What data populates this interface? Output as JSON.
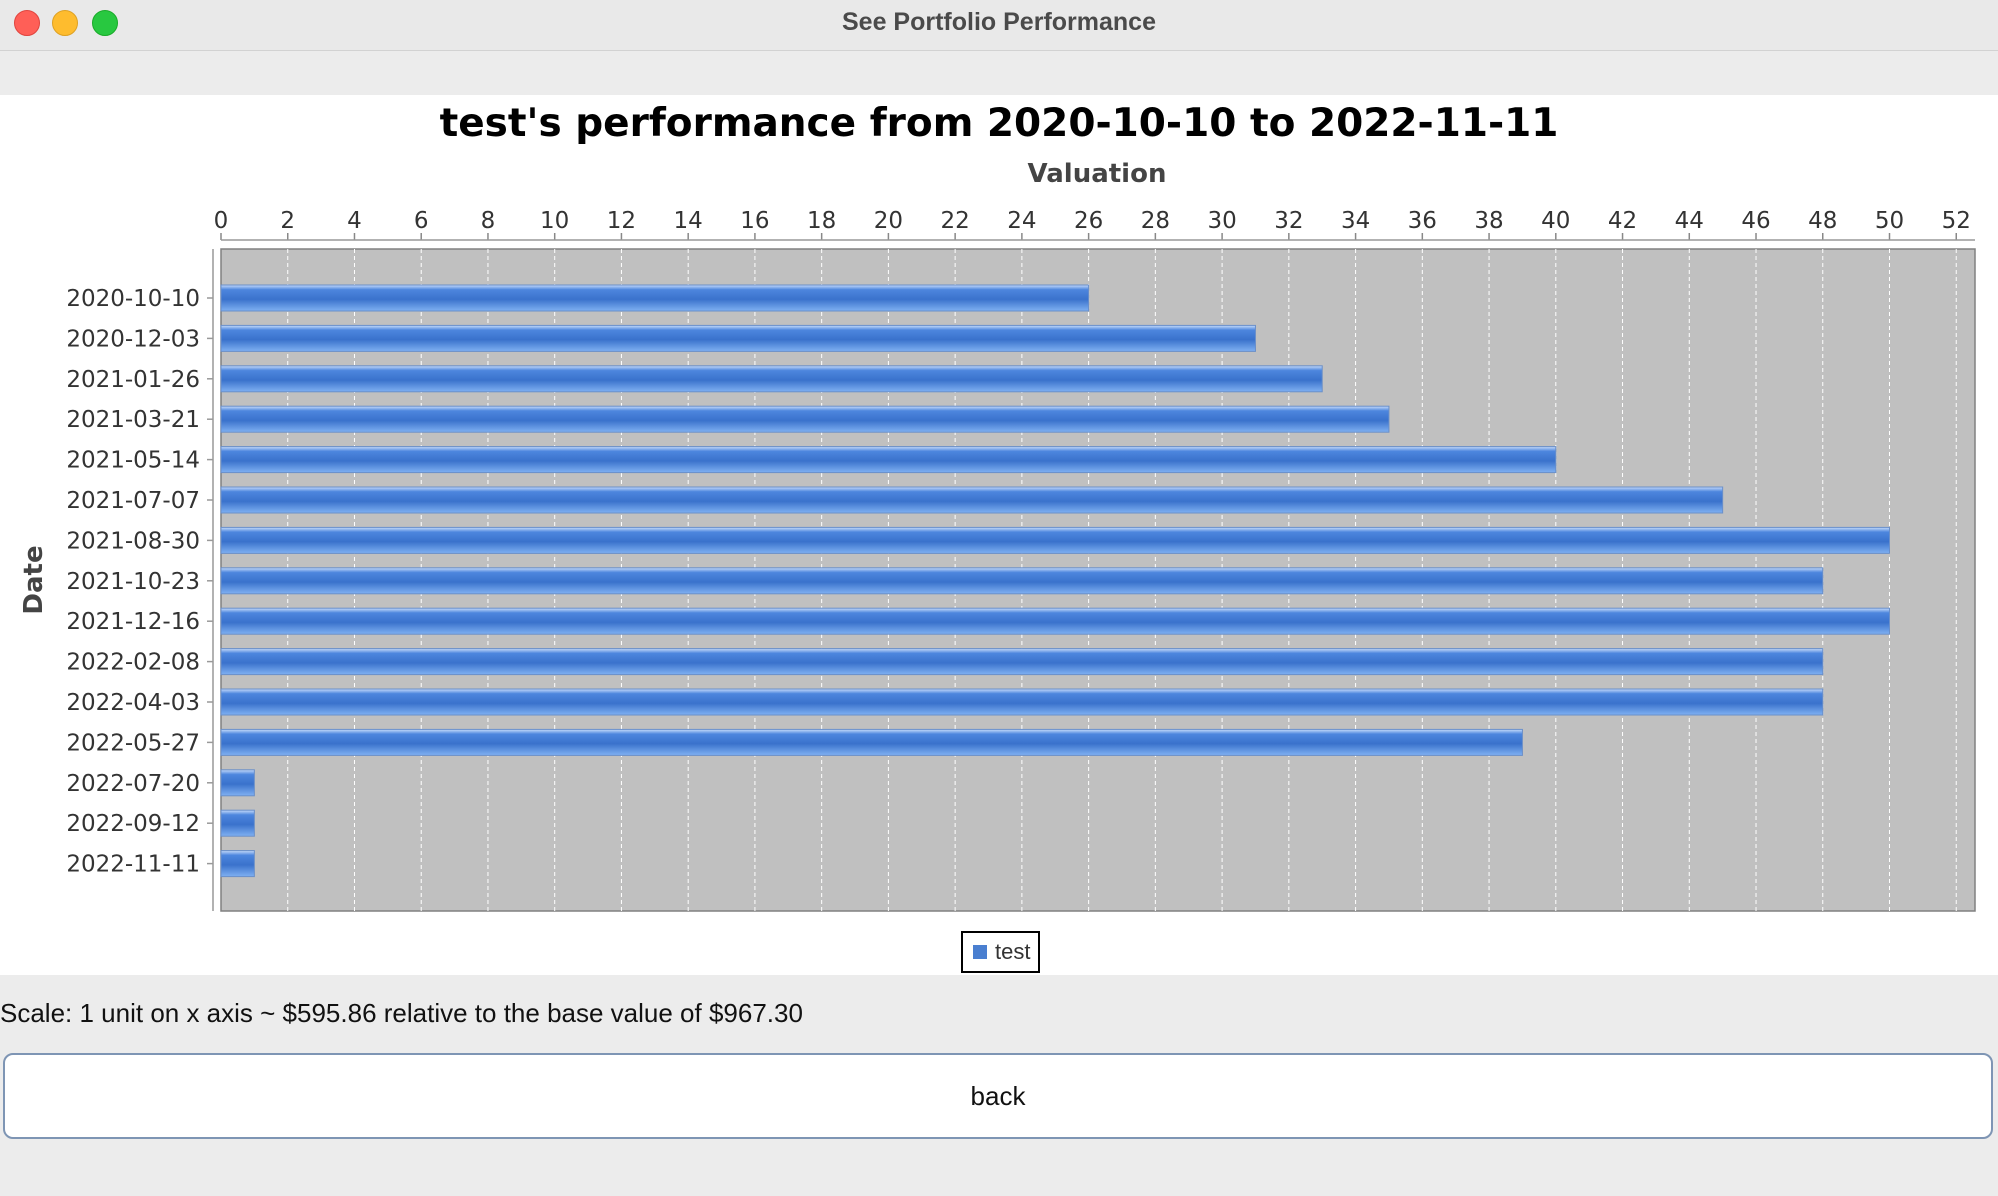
{
  "window": {
    "title": "See Portfolio Performance"
  },
  "chart_data": {
    "type": "bar",
    "orientation": "horizontal",
    "title": "test's performance from 2020-10-10 to 2022-11-11",
    "xlabel": "Valuation",
    "ylabel": "Date",
    "xlim": [
      0,
      52.5
    ],
    "x_ticks": [
      0,
      2,
      4,
      6,
      8,
      10,
      12,
      14,
      16,
      18,
      20,
      22,
      24,
      26,
      28,
      30,
      32,
      34,
      36,
      38,
      40,
      42,
      44,
      46,
      48,
      50,
      52
    ],
    "grid": true,
    "legend_position": "bottom-center",
    "categories": [
      "2020-10-10",
      "2020-12-03",
      "2021-01-26",
      "2021-03-21",
      "2021-05-14",
      "2021-07-07",
      "2021-08-30",
      "2021-10-23",
      "2021-12-16",
      "2022-02-08",
      "2022-04-03",
      "2022-05-27",
      "2022-07-20",
      "2022-09-12",
      "2022-11-11"
    ],
    "series": [
      {
        "name": "test",
        "color": "#4a7fd0",
        "values": [
          26,
          31,
          33,
          35,
          40,
          45,
          50,
          48,
          50,
          48,
          48,
          39,
          1,
          1,
          1
        ]
      }
    ]
  },
  "scale_text": "Scale: 1 unit on x axis ~ $595.86 relative to the base value of $967.30",
  "buttons": {
    "back_label": "back"
  }
}
